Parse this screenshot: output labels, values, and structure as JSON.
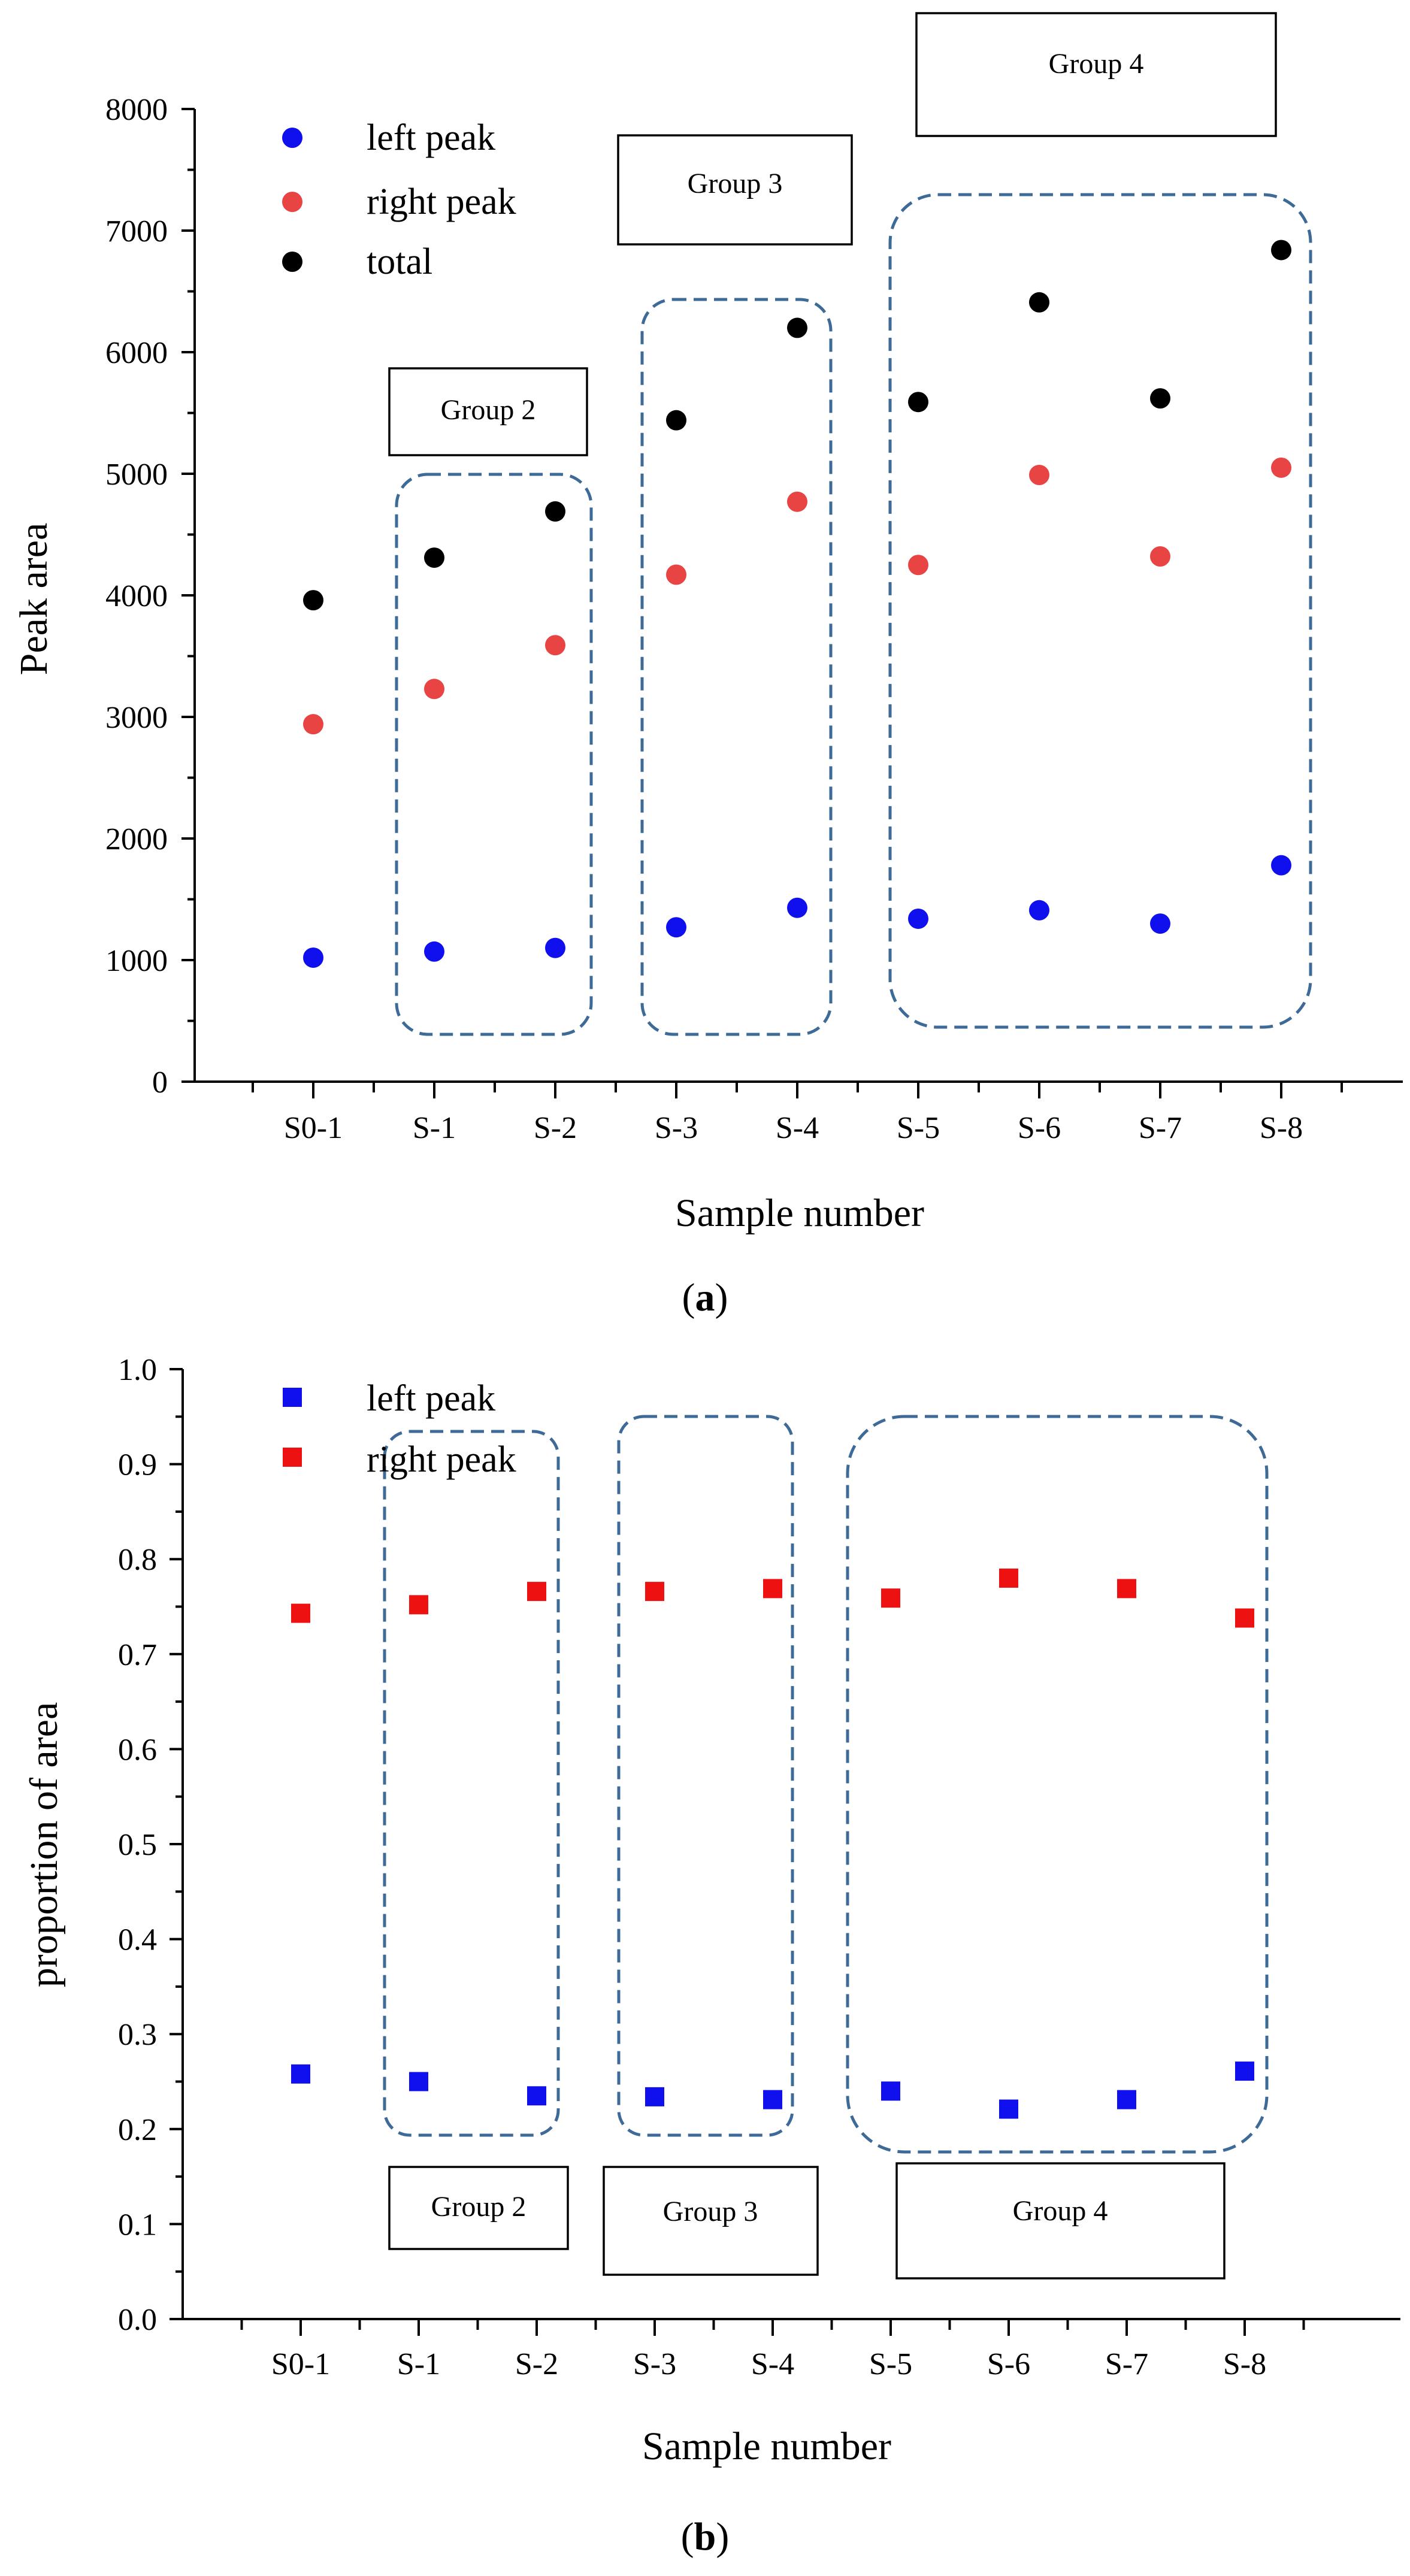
{
  "chart_data": [
    {
      "type": "scatter",
      "panel": "(a)",
      "title": "",
      "xlabel": "Sample number",
      "ylabel": "Peak area",
      "ylim": [
        0,
        8000
      ],
      "yticks": [
        "0",
        "1000",
        "2000",
        "3000",
        "4000",
        "5000",
        "6000",
        "7000",
        "8000"
      ],
      "categories": [
        "S0-1",
        "S-1",
        "S-2",
        "S-3",
        "S-4",
        "S-5",
        "S-6",
        "S-7",
        "S-8"
      ],
      "marker": "circle",
      "legend_position": "top-left",
      "series": [
        {
          "name": "left peak",
          "color": "#1010ee",
          "values": [
            1020,
            1070,
            1100,
            1270,
            1430,
            1340,
            1410,
            1300,
            1780
          ]
        },
        {
          "name": "right peak",
          "color": "#e84444",
          "values": [
            2940,
            3230,
            3590,
            4170,
            4770,
            4250,
            4990,
            4320,
            5050
          ]
        },
        {
          "name": "total",
          "color": "#000000",
          "values": [
            3960,
            4310,
            4690,
            5440,
            6200,
            5590,
            6410,
            5620,
            6840
          ]
        }
      ],
      "groups": [
        {
          "label": "Group 2",
          "members": [
            "S-1",
            "S-2"
          ]
        },
        {
          "label": "Group 3",
          "members": [
            "S-3",
            "S-4"
          ]
        },
        {
          "label": "Group 4",
          "members": [
            "S-5",
            "S-6",
            "S-7",
            "S-8"
          ]
        }
      ]
    },
    {
      "type": "scatter",
      "panel": "(b)",
      "title": "",
      "xlabel": "Sample number",
      "ylabel": "proportion of area",
      "ylim": [
        0.0,
        1.0
      ],
      "yticks": [
        "0.0",
        "0.1",
        "0.2",
        "0.3",
        "0.4",
        "0.5",
        "0.6",
        "0.7",
        "0.8",
        "0.9",
        "1.0"
      ],
      "categories": [
        "S0-1",
        "S-1",
        "S-2",
        "S-3",
        "S-4",
        "S-5",
        "S-6",
        "S-7",
        "S-8"
      ],
      "marker": "square",
      "legend_position": "top-left",
      "series": [
        {
          "name": "left peak",
          "color": "#1010ee",
          "values": [
            0.258,
            0.25,
            0.235,
            0.234,
            0.231,
            0.24,
            0.221,
            0.231,
            0.261
          ]
        },
        {
          "name": "right peak",
          "color": "#ee1111",
          "values": [
            0.743,
            0.752,
            0.766,
            0.766,
            0.769,
            0.759,
            0.78,
            0.769,
            0.738
          ]
        }
      ],
      "groups": [
        {
          "label": "Group 2",
          "members": [
            "S-1",
            "S-2"
          ]
        },
        {
          "label": "Group 3",
          "members": [
            "S-3",
            "S-4"
          ]
        },
        {
          "label": "Group 4",
          "members": [
            "S-5",
            "S-6",
            "S-7",
            "S-8"
          ]
        }
      ]
    }
  ]
}
